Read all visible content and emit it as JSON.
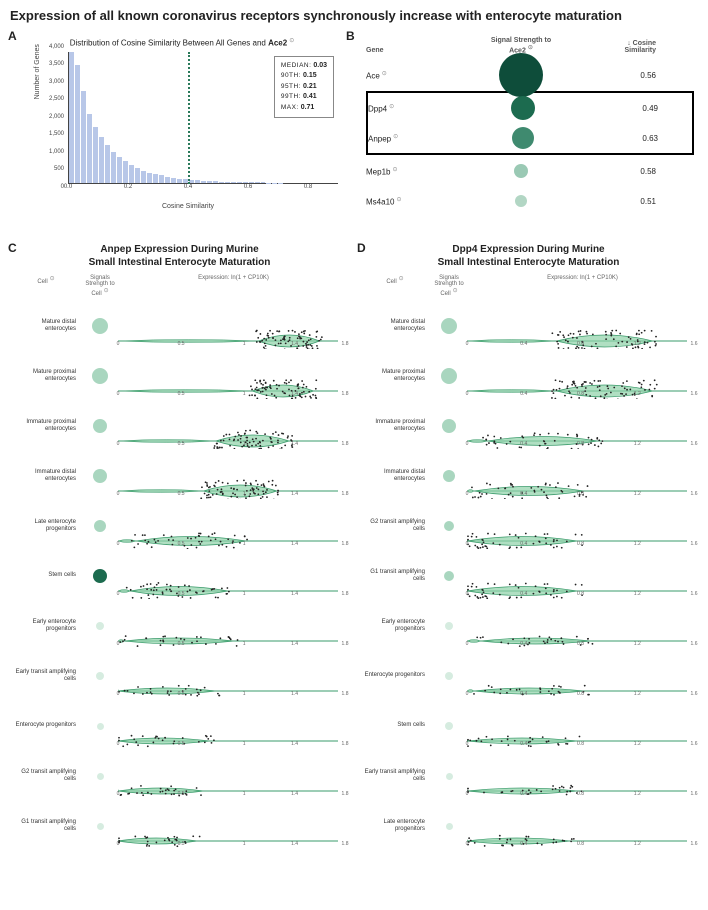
{
  "title": "Expression of all known coronavirus receptors synchronously increase with enterocyte maturation",
  "panelA": {
    "label": "A",
    "title_prefix": "Distribution of Cosine Similarity Between All Genes and ",
    "title_gene": "Ace2",
    "ylabel": "Number of Genes",
    "xlabel": "Cosine Similarity",
    "xlim": [
      0.0,
      0.9
    ],
    "ylim": [
      0,
      4000
    ],
    "yticks": [
      0,
      500,
      1000,
      1500,
      2000,
      2500,
      3000,
      3500,
      4000
    ],
    "xticks": [
      0.0,
      0.2,
      0.4,
      0.6,
      0.8
    ],
    "ref_line_x": 0.4,
    "bar_color": "#b8c7e8",
    "ref_line_color": "#2a7a5a",
    "bins": [
      4000,
      3600,
      2800,
      2100,
      1700,
      1400,
      1150,
      950,
      780,
      650,
      540,
      450,
      370,
      310,
      260,
      220,
      180,
      150,
      125,
      100,
      85,
      70,
      58,
      48,
      40,
      33,
      27,
      22,
      18,
      14,
      11,
      9,
      7,
      5,
      4,
      3,
      2,
      1,
      1,
      0,
      0,
      0,
      0,
      0,
      0
    ],
    "stats": {
      "median_label": "MEDIAN:",
      "median": "0.03",
      "p90_label": "90TH:",
      "p90": "0.15",
      "p95_label": "95TH:",
      "p95": "0.21",
      "p99_label": "99TH:",
      "p99": "0.41",
      "max_label": "MAX:",
      "max": "0.71"
    }
  },
  "panelB": {
    "label": "B",
    "headers": {
      "gene": "Gene",
      "signal": "Signal Strength to",
      "signal_target": "Ace2",
      "cos": "Cosine Similarity"
    },
    "rows": [
      {
        "gene": "Ace",
        "dot_size": 44,
        "dot_color": "#0e4d3a",
        "cos": "0.56",
        "highlight": false
      },
      {
        "gene": "Dpp4",
        "dot_size": 24,
        "dot_color": "#1c6b4f",
        "cos": "0.49",
        "highlight": true
      },
      {
        "gene": "Anpep",
        "dot_size": 22,
        "dot_color": "#3f8a6f",
        "cos": "0.63",
        "highlight": true
      },
      {
        "gene": "Mep1b",
        "dot_size": 14,
        "dot_color": "#9ac9b4",
        "cos": "0.58",
        "highlight": false
      },
      {
        "gene": "Ms4a10",
        "dot_size": 12,
        "dot_color": "#b2d6c4",
        "cos": "0.51",
        "highlight": false
      }
    ]
  },
  "panelC": {
    "label": "C",
    "title_line1": "Anpep Expression During Murine",
    "title_line2": "Small Intestinal Enterocyte Maturation",
    "col_cell": "Cell",
    "col_signal": "Signals Strength to Cell",
    "col_expr": "Expression: ln(1 + CP10K)",
    "xmax": 1.8,
    "xticks": [
      0,
      0.5,
      1.0,
      1.4,
      1.8
    ],
    "violin_fill": "#8fd1a8",
    "violin_stroke": "#3a9b6b",
    "sig_colors": {
      "big": "#a9d6bf",
      "mid": "#88c2a6",
      "small": "#d6ece0",
      "dark": "#1c6b4f"
    },
    "rows": [
      {
        "label": "Mature distal enterocytes",
        "sig_size": 16,
        "sig_tone": "big",
        "center": 1.4,
        "spread": 0.25,
        "dense": "high"
      },
      {
        "label": "Mature proximal enterocytes",
        "sig_size": 16,
        "sig_tone": "big",
        "center": 1.35,
        "spread": 0.25,
        "dense": "high"
      },
      {
        "label": "Immature proximal enterocytes",
        "sig_size": 14,
        "sig_tone": "big",
        "center": 1.1,
        "spread": 0.3,
        "dense": "high"
      },
      {
        "label": "Immature distal enterocytes",
        "sig_size": 14,
        "sig_tone": "big",
        "center": 1.0,
        "spread": 0.3,
        "dense": "high"
      },
      {
        "label": "Late enterocyte progenitors",
        "sig_size": 12,
        "sig_tone": "big",
        "center": 0.6,
        "spread": 0.45,
        "dense": "mid"
      },
      {
        "label": "Stem cells",
        "sig_size": 14,
        "sig_tone": "dark",
        "center": 0.5,
        "spread": 0.4,
        "dense": "mid"
      },
      {
        "label": "Early enterocyte progenitors",
        "sig_size": 8,
        "sig_tone": "small",
        "center": 0.5,
        "spread": 0.45,
        "dense": "low"
      },
      {
        "label": "Early transit amplifying cells",
        "sig_size": 8,
        "sig_tone": "small",
        "center": 0.4,
        "spread": 0.4,
        "dense": "low"
      },
      {
        "label": "Enterocyte progenitors",
        "sig_size": 7,
        "sig_tone": "small",
        "center": 0.35,
        "spread": 0.4,
        "dense": "low"
      },
      {
        "label": "G2 transit amplifying cells",
        "sig_size": 7,
        "sig_tone": "small",
        "center": 0.35,
        "spread": 0.35,
        "dense": "low"
      },
      {
        "label": "G1 transit amplifying cells",
        "sig_size": 7,
        "sig_tone": "small",
        "center": 0.3,
        "spread": 0.35,
        "dense": "low"
      }
    ]
  },
  "panelD": {
    "label": "D",
    "title_line1": "Dpp4 Expression During Murine",
    "title_line2": "Small Intestinal Enterocyte Maturation",
    "col_cell": "Cell",
    "col_signal": "Signals Strength to Cell",
    "col_expr": "Expression: ln(1 + CP10K)",
    "xmax": 1.6,
    "xticks": [
      0,
      0.4,
      0.8,
      1.2,
      1.6
    ],
    "violin_fill": "#8fd1a8",
    "violin_stroke": "#3a9b6b",
    "rows": [
      {
        "label": "Mature distal enterocytes",
        "sig_size": 16,
        "sig_tone": "big",
        "center": 1.0,
        "spread": 0.35,
        "dense": "high"
      },
      {
        "label": "Mature proximal enterocytes",
        "sig_size": 16,
        "sig_tone": "big",
        "center": 1.0,
        "spread": 0.35,
        "dense": "high"
      },
      {
        "label": "Immature proximal enterocytes",
        "sig_size": 14,
        "sig_tone": "big",
        "center": 0.55,
        "spread": 0.4,
        "dense": "mid"
      },
      {
        "label": "Immature distal enterocytes",
        "sig_size": 12,
        "sig_tone": "big",
        "center": 0.45,
        "spread": 0.4,
        "dense": "mid"
      },
      {
        "label": "G2 transit amplifying cells",
        "sig_size": 10,
        "sig_tone": "big",
        "center": 0.4,
        "spread": 0.4,
        "dense": "mid"
      },
      {
        "label": "G1 transit amplifying cells",
        "sig_size": 10,
        "sig_tone": "big",
        "center": 0.4,
        "spread": 0.4,
        "dense": "mid"
      },
      {
        "label": "Early enterocyte progenitors",
        "sig_size": 8,
        "sig_tone": "small",
        "center": 0.5,
        "spread": 0.4,
        "dense": "low"
      },
      {
        "label": "Enterocyte progenitors",
        "sig_size": 8,
        "sig_tone": "small",
        "center": 0.45,
        "spread": 0.4,
        "dense": "low"
      },
      {
        "label": "Stem cells",
        "sig_size": 8,
        "sig_tone": "small",
        "center": 0.4,
        "spread": 0.4,
        "dense": "low"
      },
      {
        "label": "Early transit amplifying cells",
        "sig_size": 7,
        "sig_tone": "small",
        "center": 0.4,
        "spread": 0.4,
        "dense": "low"
      },
      {
        "label": "Late enterocyte progenitors",
        "sig_size": 7,
        "sig_tone": "small",
        "center": 0.35,
        "spread": 0.4,
        "dense": "low"
      }
    ]
  }
}
